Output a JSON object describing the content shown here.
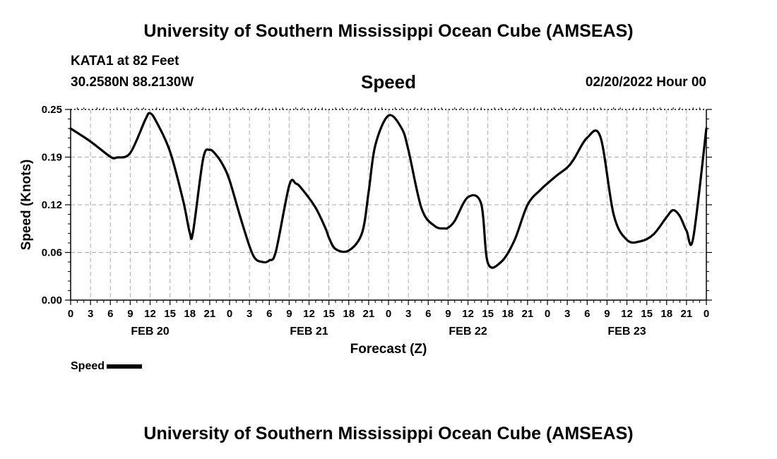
{
  "header": {
    "title": "University of Southern Mississippi Ocean Cube (AMSEAS)",
    "station": "KATA1 at 82 Feet",
    "coords": "30.2580N  88.2130W",
    "chart_title": "Speed",
    "datetime": "02/20/2022 Hour 00"
  },
  "footer": {
    "title": "University of Southern Mississippi Ocean Cube (AMSEAS)"
  },
  "legend": {
    "label": "Speed"
  },
  "chart_data": {
    "type": "line",
    "title": "Speed",
    "xlabel": "Forecast (Z)",
    "ylabel": "Speed (Knots)",
    "ylim": [
      0,
      0.25
    ],
    "yticks": [
      "0.00",
      "0.06",
      "0.12",
      "0.19",
      "0.25"
    ],
    "ytick_values": [
      0,
      0.0625,
      0.125,
      0.1875,
      0.25
    ],
    "xlim_hours": [
      0,
      96
    ],
    "xtick_labels": [
      "0",
      "3",
      "6",
      "9",
      "12",
      "15",
      "18",
      "21",
      "0",
      "3",
      "6",
      "9",
      "12",
      "15",
      "18",
      "21",
      "0",
      "3",
      "6",
      "9",
      "12",
      "15",
      "18",
      "21",
      "0",
      "3",
      "6",
      "9",
      "12",
      "15",
      "18",
      "21",
      "0"
    ],
    "day_labels": [
      "FEB 20",
      "FEB 21",
      "FEB 22",
      "FEB 23"
    ],
    "grid": true,
    "series": [
      {
        "name": "Speed",
        "color": "#000000",
        "x": [
          0,
          3,
          6,
          7,
          9,
          11.3,
          12,
          13,
          15,
          17,
          18,
          18.5,
          20,
          21,
          22,
          23,
          24,
          26,
          27.6,
          29,
          30,
          31,
          33,
          34,
          35,
          37,
          38.5,
          39,
          40,
          42,
          44,
          45,
          46,
          48,
          50,
          51,
          53,
          55,
          56.5,
          57,
          58,
          60,
          62,
          63,
          65,
          67,
          69,
          71,
          72,
          73.5,
          75,
          76,
          78,
          80,
          82,
          84,
          86,
          88,
          90,
          91,
          92,
          93,
          94,
          96
        ],
        "y": [
          0.225,
          0.208,
          0.188,
          0.187,
          0.193,
          0.237,
          0.245,
          0.233,
          0.195,
          0.13,
          0.088,
          0.09,
          0.185,
          0.197,
          0.19,
          0.177,
          0.157,
          0.098,
          0.058,
          0.05,
          0.052,
          0.064,
          0.15,
          0.153,
          0.145,
          0.121,
          0.094,
          0.082,
          0.067,
          0.065,
          0.088,
          0.142,
          0.203,
          0.242,
          0.225,
          0.197,
          0.12,
          0.097,
          0.094,
          0.095,
          0.104,
          0.135,
          0.126,
          0.049,
          0.05,
          0.078,
          0.125,
          0.145,
          0.153,
          0.164,
          0.174,
          0.185,
          0.213,
          0.214,
          0.112,
          0.079,
          0.077,
          0.086,
          0.109,
          0.118,
          0.11,
          0.091,
          0.081,
          0.225
        ]
      }
    ]
  }
}
